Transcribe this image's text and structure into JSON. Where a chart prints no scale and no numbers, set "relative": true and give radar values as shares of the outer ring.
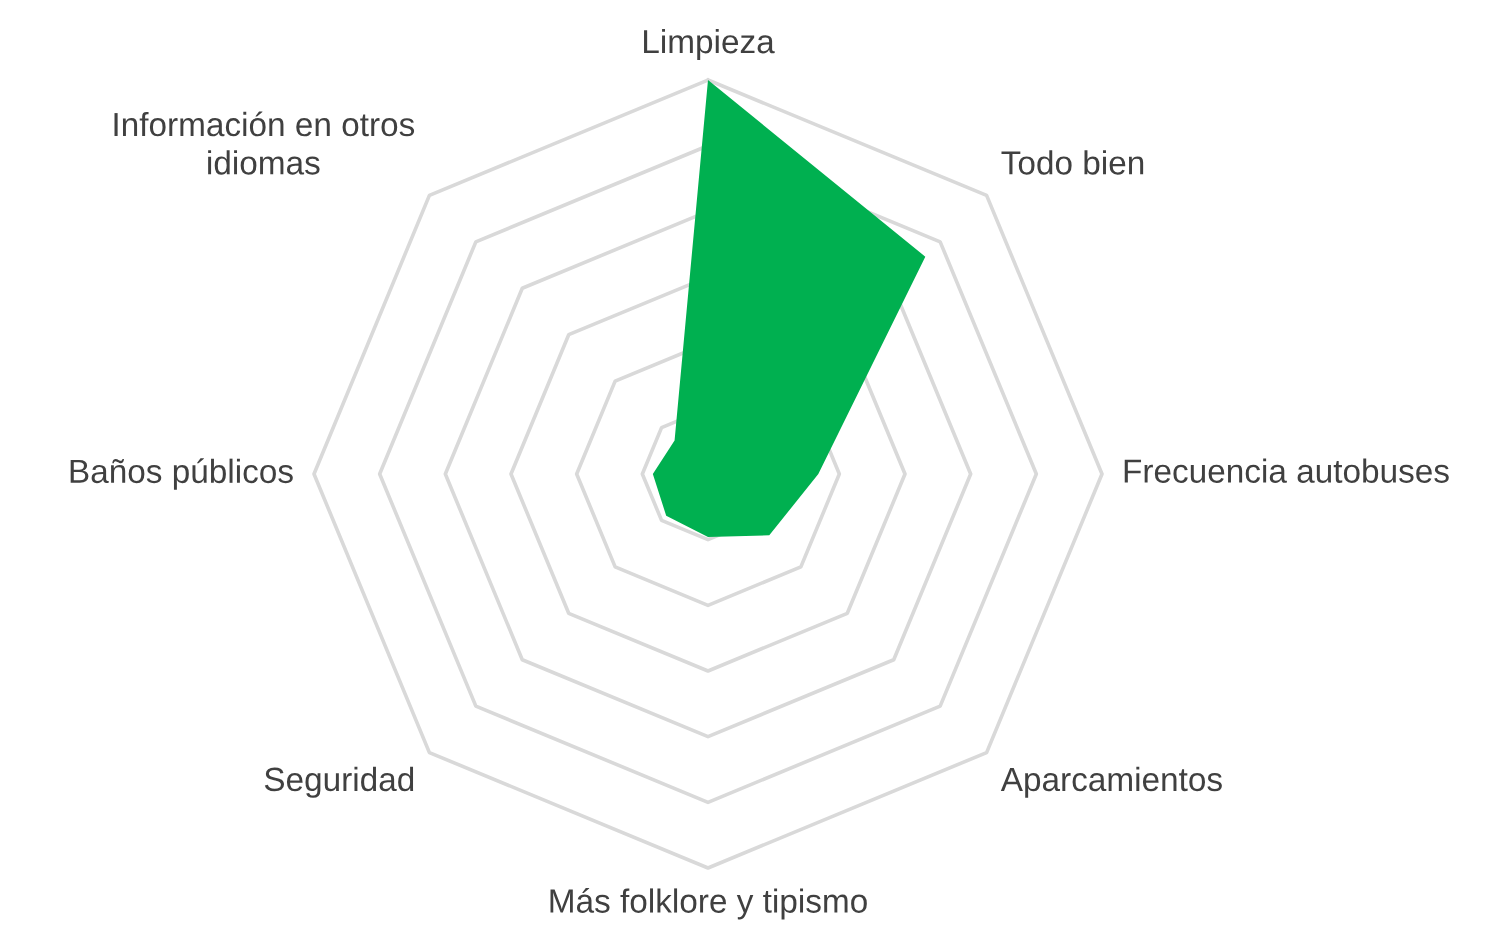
{
  "chart_data": {
    "type": "radar",
    "relative": true,
    "grid": true,
    "categories": [
      "Limpieza",
      "Todo bien",
      "Frecuencia autobuses",
      "Aparcamientos",
      "Más folklore y tipismo",
      "Seguridad",
      "Baños públicos",
      "Información en otros\nidiomas"
    ],
    "series": [
      {
        "color": "#00b050",
        "values": [
          1.0,
          0.78,
          0.28,
          0.22,
          0.16,
          0.15,
          0.14,
          0.12
        ]
      }
    ]
  }
}
